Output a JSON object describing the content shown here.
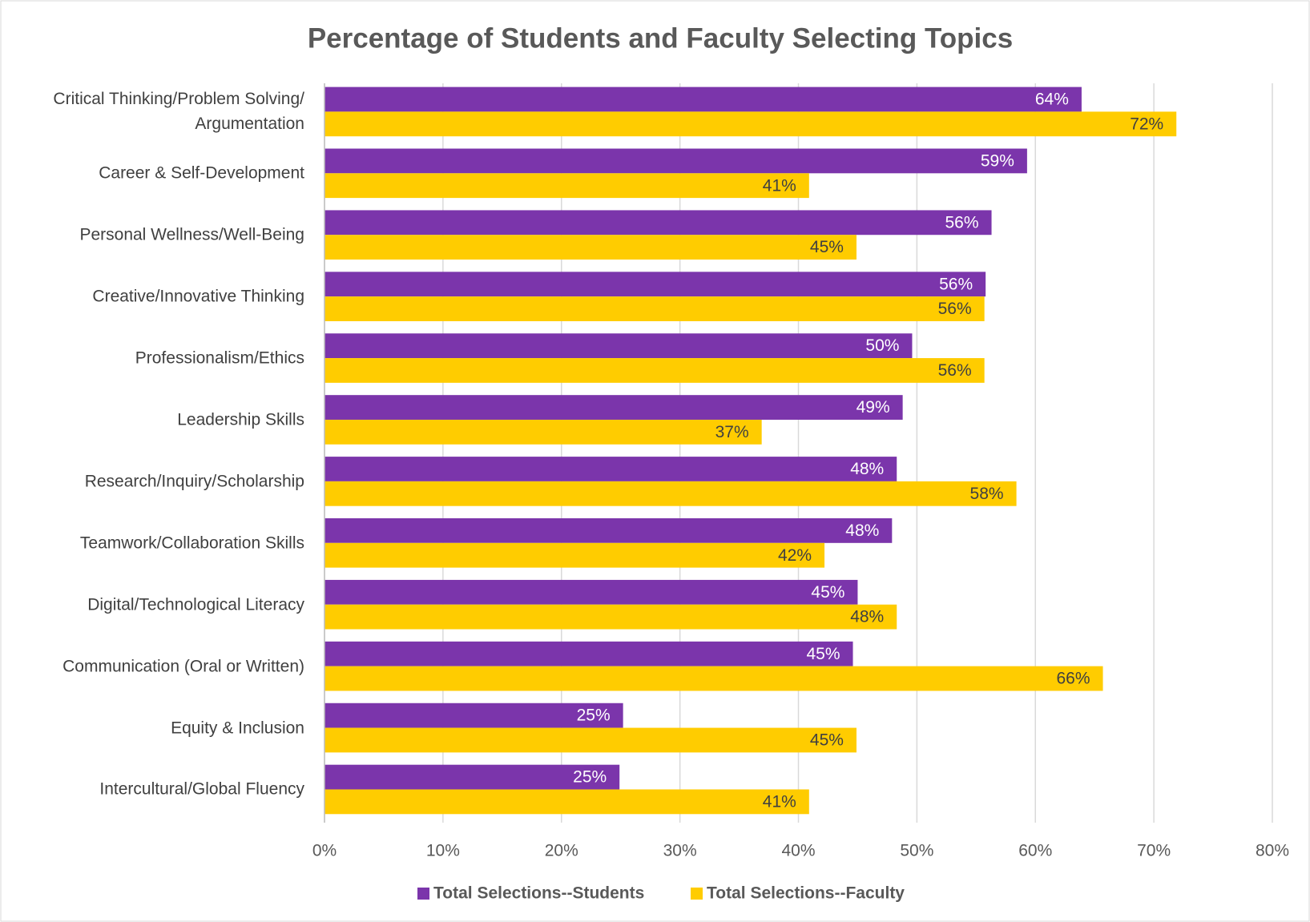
{
  "chart_data": {
    "type": "bar",
    "orientation": "horizontal",
    "title": "Percentage of Students and Faculty Selecting Topics",
    "categories": [
      "Critical Thinking/Problem Solving/ Argumentation",
      "Career & Self-Development",
      "Personal Wellness/Well-Being",
      "Creative/Innovative Thinking",
      "Professionalism/Ethics",
      "Leadership Skills",
      "Research/Inquiry/Scholarship",
      "Teamwork/Collaboration Skills",
      "Digital/Technological Literacy",
      "Communication (Oral or Written)",
      "Equity & Inclusion",
      "Intercultural/Global Fluency"
    ],
    "series": [
      {
        "name": "Total Selections--Students",
        "color": "#7b35ab",
        "values": [
          63.9,
          59.3,
          56.3,
          55.8,
          49.6,
          48.8,
          48.3,
          47.9,
          45.0,
          44.6,
          25.2,
          24.9
        ],
        "value_labels": [
          "64%",
          "59%",
          "56%",
          "56%",
          "50%",
          "49%",
          "48%",
          "48%",
          "45%",
          "45%",
          "25%",
          "25%"
        ]
      },
      {
        "name": "Total Selections--Faculty",
        "color": "#ffcc00",
        "values": [
          71.9,
          40.9,
          44.9,
          55.7,
          55.7,
          36.9,
          58.4,
          42.2,
          48.3,
          65.7,
          44.9,
          40.9
        ],
        "value_labels": [
          "72%",
          "41%",
          "45%",
          "56%",
          "56%",
          "37%",
          "58%",
          "42%",
          "48%",
          "66%",
          "45%",
          "41%"
        ]
      }
    ],
    "xlim": [
      0,
      80
    ],
    "xticks": [
      {
        "value": 0,
        "label": "0%"
      },
      {
        "value": 10,
        "label": "10%"
      },
      {
        "value": 20,
        "label": "20%"
      },
      {
        "value": 30,
        "label": "30%"
      },
      {
        "value": 40,
        "label": "40%"
      },
      {
        "value": 50,
        "label": "50%"
      },
      {
        "value": 60,
        "label": "60%"
      },
      {
        "value": 70,
        "label": "70%"
      },
      {
        "value": 80,
        "label": "80%"
      }
    ],
    "grid": true,
    "legend": "bottom"
  }
}
